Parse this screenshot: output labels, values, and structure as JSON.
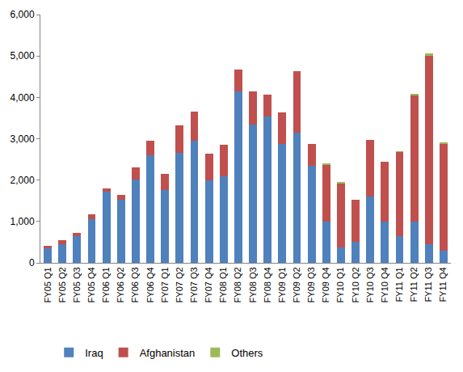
{
  "chart_data": {
    "type": "bar",
    "stacked": true,
    "grid": false,
    "legend": "bottom",
    "categories": [
      "FY05 Q1",
      "FY05 Q2",
      "FY05 Q3",
      "FY05 Q4",
      "FY06 Q1",
      "FY06 Q2",
      "FY06 Q3",
      "FY06 Q4",
      "FY07 Q1",
      "FY07 Q2",
      "FY07 Q3",
      "FY07 Q4",
      "FY08 Q1",
      "FY08 Q2",
      "FY08 Q3",
      "FY08 Q4",
      "FY09 Q1",
      "FY09 Q2",
      "FY09 Q3",
      "FY09 Q4",
      "FY10 Q1",
      "FY10 Q2",
      "FY10 Q3",
      "FY10 Q4",
      "FY11 Q1",
      "FY11 Q2",
      "FY11 Q3",
      "FY11 Q4"
    ],
    "ylim": [
      0,
      6000
    ],
    "yticks": [
      0,
      {
        "value": 1000,
        "label": "1,000"
      },
      {
        "value": 2000,
        "label": "2,000"
      },
      {
        "value": 3000,
        "label": "3,000"
      },
      {
        "value": 4000,
        "label": "4,000"
      },
      {
        "value": 5000,
        "label": "5,000"
      },
      {
        "value": 6000,
        "label": "6,000"
      }
    ],
    "series": [
      {
        "name": "Iraq",
        "color": "#4f81bd",
        "values": [
          350,
          450,
          650,
          1050,
          1720,
          1520,
          2020,
          2600,
          1750,
          2650,
          2950,
          2000,
          2100,
          4150,
          3350,
          3530,
          2880,
          3150,
          2350,
          1000,
          380,
          500,
          1600,
          1000,
          650,
          1000,
          450,
          300
        ]
      },
      {
        "name": "Afghanistan",
        "color": "#c0504d",
        "values": [
          70,
          90,
          70,
          120,
          80,
          120,
          280,
          350,
          400,
          680,
          700,
          640,
          750,
          530,
          800,
          540,
          750,
          1490,
          530,
          1370,
          1540,
          1030,
          1380,
          1450,
          2030,
          3060,
          4550,
          2580
        ]
      },
      {
        "name": "Others",
        "color": "#9bbb59",
        "values": [
          0,
          0,
          0,
          0,
          0,
          0,
          0,
          0,
          0,
          0,
          0,
          0,
          0,
          0,
          0,
          0,
          0,
          0,
          0,
          30,
          20,
          0,
          0,
          0,
          10,
          20,
          60,
          20
        ]
      }
    ]
  }
}
